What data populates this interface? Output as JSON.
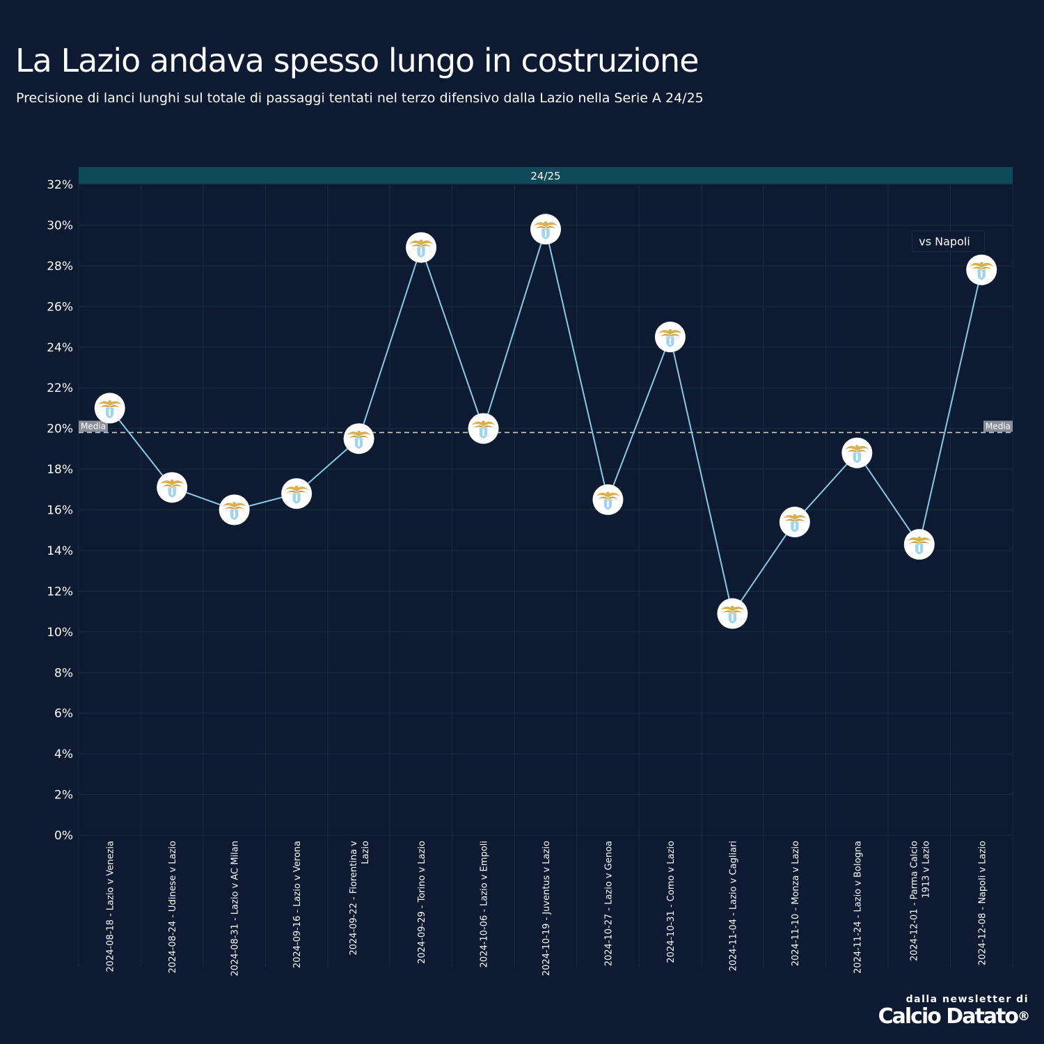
{
  "title": "La Lazio andava spesso lungo in costruzione",
  "subtitle": "Precisione di lanci lunghi sul totale di passaggi tentati nel terzo difensivo dalla Lazio nella Serie A 24/25",
  "season_band": "24/25",
  "average_label": "Media",
  "annotation": "vs Napoli",
  "branding": {
    "top": "dalla newsletter di",
    "logo": "Calcio Datato",
    "mark": "®"
  },
  "colors": {
    "background": "#0d1a31",
    "line": "#87cbe8",
    "band": "#0f4a5a",
    "grid": "#15303a",
    "average": "#c9ccd4",
    "marker": "#ffffff"
  },
  "chart_data": {
    "type": "line",
    "title": "La Lazio andava spesso lungo in costruzione",
    "xlabel": "",
    "ylabel": "",
    "ylim": [
      0,
      32
    ],
    "yticks": [
      "0%",
      "2%",
      "4%",
      "6%",
      "8%",
      "10%",
      "12%",
      "14%",
      "16%",
      "18%",
      "20%",
      "22%",
      "24%",
      "26%",
      "28%",
      "30%",
      "32%"
    ],
    "grid": true,
    "marker": "Lazio crest",
    "categories": [
      "2024-08-18 - Lazio v Venezia",
      "2024-08-24 - Udinese v Lazio",
      "2024-08-31 - Lazio v AC Milan",
      "2024-09-16 - Lazio v Verona",
      "2024-09-22 - Fiorentina v Lazio",
      "2024-09-29 - Torino v Lazio",
      "2024-10-06 - Lazio v Empoli",
      "2024-10-19 - Juventus v Lazio",
      "2024-10-27 - Lazio v Genoa",
      "2024-10-31 - Como v Lazio",
      "2024-11-04 - Lazio v Cagliari",
      "2024-11-10 - Monza v Lazio",
      "2024-11-24 - Lazio v Bologna",
      "2024-12-01 - Parma Calcio 1913 v Lazio",
      "2024-12-08 - Napoli v Lazio"
    ],
    "category_lines": [
      [
        "2024-08-18 - Lazio v Venezia"
      ],
      [
        "2024-08-24 - Udinese v Lazio"
      ],
      [
        "2024-08-31 - Lazio v AC Milan"
      ],
      [
        "2024-09-16 - Lazio v Verona"
      ],
      [
        "2024-09-22 - Fiorentina v",
        "Lazio"
      ],
      [
        "2024-09-29 - Torino v Lazio"
      ],
      [
        "2024-10-06 - Lazio v Empoli"
      ],
      [
        "2024-10-19 - Juventus v Lazio"
      ],
      [
        "2024-10-27 - Lazio v Genoa"
      ],
      [
        "2024-10-31 - Como v Lazio"
      ],
      [
        "2024-11-04 - Lazio v Cagliari"
      ],
      [
        "2024-11-10 - Monza v Lazio"
      ],
      [
        "2024-11-24 - Lazio v Bologna"
      ],
      [
        "2024-12-01 - Parma Calcio",
        "1913 v Lazio"
      ],
      [
        "2024-12-08 - Napoli v Lazio"
      ]
    ],
    "values": [
      21.0,
      17.1,
      16.0,
      16.8,
      19.5,
      28.9,
      20.0,
      29.8,
      16.5,
      24.5,
      10.9,
      15.4,
      18.8,
      14.3,
      27.8
    ],
    "average": 19.8
  }
}
